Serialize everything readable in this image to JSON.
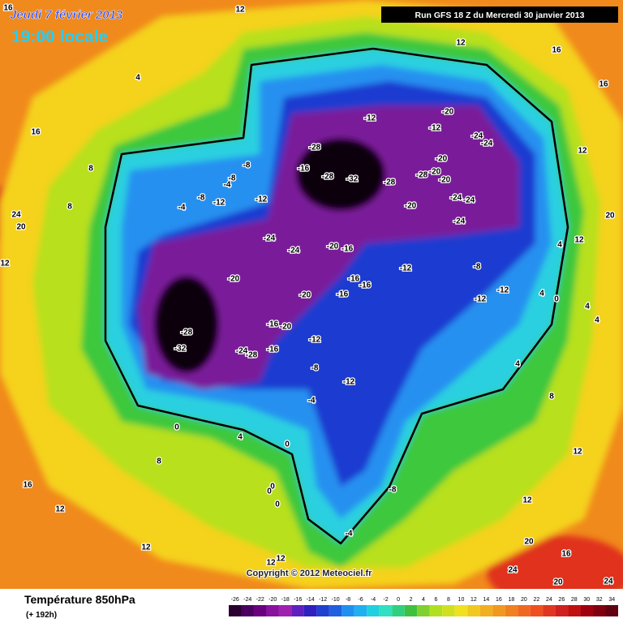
{
  "header": {
    "date": "Jeudi 7 février 2013",
    "time": "19:00 locale",
    "run": "Run GFS 18 Z du Mercredi 30 janvier 2013"
  },
  "map": {
    "copyright": "Copyright © 2012 Meteociel.fr",
    "contour_labels": [
      16,
      12,
      12,
      16,
      16,
      4,
      16,
      8,
      8,
      24,
      20,
      -12,
      -20,
      -12,
      -24,
      -24,
      -28,
      -16,
      -28,
      -32,
      -28,
      -20,
      -28,
      -20,
      -20,
      -24,
      -24,
      -20,
      -24,
      -4,
      -8,
      -12,
      -4,
      -8,
      -12,
      -8,
      -24,
      -24,
      -20,
      -16,
      -12,
      -8,
      12,
      12,
      4,
      20,
      12,
      -20,
      -16,
      -16,
      -20,
      -16,
      -12,
      -12,
      -28,
      -32,
      -16,
      -20,
      -12,
      -16,
      -24,
      -28,
      -8,
      -12,
      -4,
      0,
      4,
      0,
      8,
      16,
      0,
      0,
      0,
      12,
      12,
      12,
      12,
      -8,
      -4,
      20,
      16,
      24,
      20,
      24,
      8,
      12,
      12,
      4,
      4,
      0,
      4,
      4
    ]
  },
  "footer": {
    "title": "Température 850hPa",
    "lead": "(+ 192h)",
    "scale": {
      "labels": [
        -26,
        -24,
        -22,
        -20,
        -18,
        -16,
        -14,
        -12,
        -10,
        -8,
        -6,
        -4,
        -2,
        0,
        2,
        4,
        6,
        8,
        10,
        12,
        14,
        16,
        18,
        20,
        22,
        24,
        26,
        28,
        30,
        32,
        34
      ],
      "colors": [
        "#2a0030",
        "#4a0060",
        "#6a0080",
        "#8a10a0",
        "#a020b0",
        "#6020c0",
        "#3020c0",
        "#2040d0",
        "#2060e0",
        "#2090f0",
        "#20b0f0",
        "#20d0e0",
        "#30e0c0",
        "#30d080",
        "#40c040",
        "#80d030",
        "#b0e020",
        "#d0e020",
        "#f0e020",
        "#f0c820",
        "#f0b020",
        "#f09820",
        "#f08020",
        "#f06820",
        "#f05020",
        "#e03820",
        "#d02020",
        "#c01010",
        "#a00010",
        "#800010",
        "#600010"
      ]
    }
  }
}
